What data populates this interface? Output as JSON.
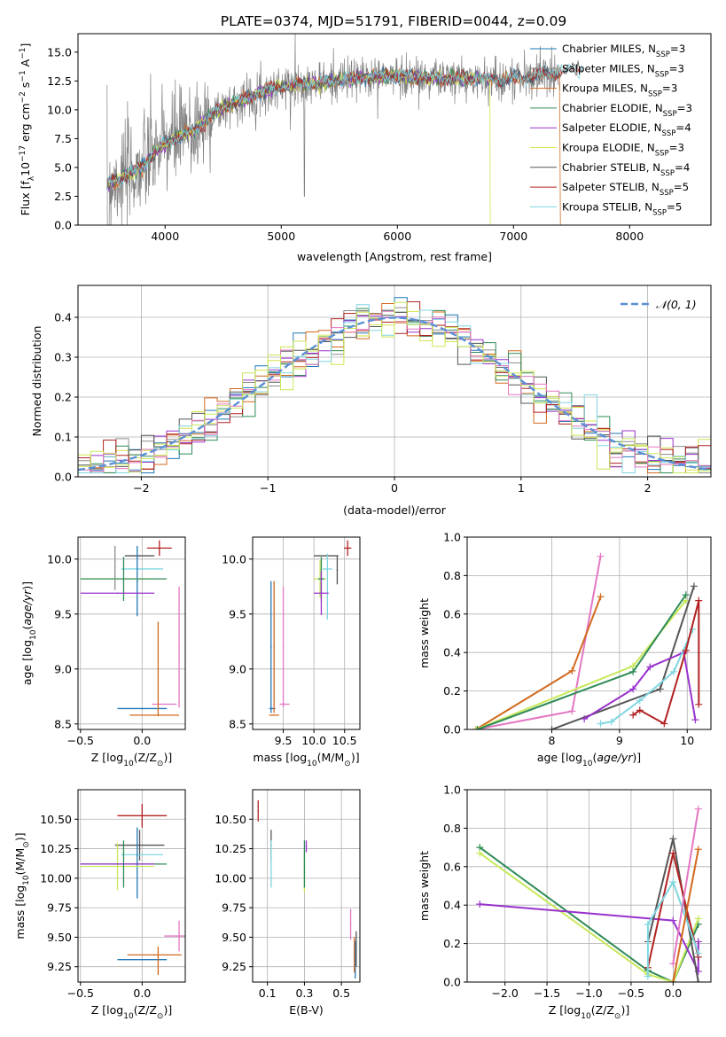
{
  "figure": {
    "title": "PLATE=0374, MJD=51791, FIBERID=0044, z=0.09"
  },
  "models": [
    {
      "name": "Chabrier MILES",
      "n": "3",
      "color": "#1f77b4"
    },
    {
      "name": "Salpeter MILES",
      "n": "3",
      "color": "#8c8c8c"
    },
    {
      "name": "Kroupa MILES",
      "n": "3",
      "color": "#d2691e"
    },
    {
      "name": "Chabrier ELODIE",
      "n": "3",
      "color": "#2e8b57"
    },
    {
      "name": "Salpeter ELODIE",
      "n": "4",
      "color": "#9932cc"
    },
    {
      "name": "Kroupa ELODIE",
      "n": "3",
      "color": "#d4e24a"
    },
    {
      "name": "Chabrier STELIB",
      "n": "4",
      "color": "#555555"
    },
    {
      "name": "Salpeter STELIB",
      "n": "5",
      "color": "#b22222"
    },
    {
      "name": "Kroupa STELIB",
      "n": "5",
      "color": "#7fd6e0"
    }
  ],
  "extra_colors": {
    "pink": "#e377c2",
    "orange": "#e07b2a",
    "lime": "#c8e85a"
  },
  "chart_data": [
    {
      "id": "spectrum",
      "type": "line",
      "title": "PLATE=0374, MJD=51791, FIBERID=0044, z=0.09",
      "xlabel": "wavelength [Angstrom, rest frame]",
      "ylabel_parts": [
        "Flux [f",
        "λ",
        "10",
        "−17",
        " erg cm",
        "−2",
        " s",
        "−1",
        " A",
        "−1",
        "]"
      ],
      "xlim": [
        3250,
        8700
      ],
      "ylim": [
        0,
        16.6
      ],
      "xticks": [
        4000,
        5000,
        6000,
        7000,
        8000
      ],
      "xtick_labels": [
        "4000",
        "5000",
        "6000",
        "7000",
        "8000"
      ],
      "yticks": [
        0,
        2.5,
        5,
        7.5,
        10,
        12.5,
        15
      ],
      "ytick_labels": [
        "0.0",
        "2.5",
        "5.0",
        "7.5",
        "10.0",
        "12.5",
        "15.0"
      ],
      "grid": false,
      "legend_position": "right",
      "legend_suffix": "N",
      "legend_sub": "SSP",
      "continuum": [
        [
          3500,
          3.6
        ],
        [
          3650,
          4.2
        ],
        [
          3800,
          5.0
        ],
        [
          3950,
          6.7
        ],
        [
          4100,
          7.6
        ],
        [
          4250,
          8.2
        ],
        [
          4400,
          9.6
        ],
        [
          4550,
          10.4
        ],
        [
          4700,
          11.0
        ],
        [
          4850,
          11.6
        ],
        [
          5000,
          12.0
        ],
        [
          5150,
          12.2
        ],
        [
          5300,
          12.3
        ],
        [
          5500,
          12.6
        ],
        [
          5700,
          12.8
        ],
        [
          5900,
          12.9
        ],
        [
          6100,
          12.9
        ],
        [
          6300,
          12.8
        ],
        [
          6500,
          12.7
        ],
        [
          6700,
          12.7
        ],
        [
          6900,
          12.6
        ],
        [
          7100,
          12.8
        ],
        [
          7300,
          13.1
        ],
        [
          7450,
          13.4
        ],
        [
          7600,
          13.6
        ]
      ],
      "data_range": [
        3500,
        7400
      ],
      "model_range": [
        3500,
        7600
      ],
      "model_ranges": {
        "Chabrier MILES": [
          3500,
          7400
        ],
        "Salpeter MILES": [
          3500,
          7400
        ],
        "Kroupa MILES": [
          3500,
          7400
        ],
        "Chabrier ELODIE": [
          3500,
          6800
        ],
        "Salpeter ELODIE": [
          3500,
          6800
        ],
        "Kroupa ELODIE": [
          3500,
          6800
        ]
      }
    },
    {
      "id": "residuals",
      "type": "histogram",
      "xlabel": "(data-model)/error",
      "ylabel": "Normed distribution",
      "xlim": [
        -2.5,
        2.5
      ],
      "ylim": [
        0,
        0.48
      ],
      "xticks": [
        -2,
        -1,
        0,
        1,
        2
      ],
      "xtick_labels": [
        "−2",
        "−1",
        "0",
        "1",
        "2"
      ],
      "yticks": [
        0,
        0.1,
        0.2,
        0.3,
        0.4
      ],
      "ytick_labels": [
        "0.0",
        "0.1",
        "0.2",
        "0.3",
        "0.4"
      ],
      "grid": true,
      "legend": "𝒩(0, 1)",
      "legend_position": "top-right",
      "normal_color": "#5b8fd6",
      "bin_width": 0.1,
      "normal": {
        "mean": 0,
        "sigma": 1
      }
    },
    {
      "id": "age-vs-Z",
      "type": "scatter",
      "xlabel_parts": [
        "Z [log",
        "10",
        "(Z/Z",
        "⊙",
        ")]"
      ],
      "ylabel_parts": [
        "age  [log",
        "10",
        "(",
        "age/yr",
        ")]"
      ],
      "xlim": [
        -0.52,
        0.35
      ],
      "ylim": [
        8.45,
        10.2
      ],
      "xticks": [
        -0.5,
        0.0
      ],
      "xtick_labels": [
        "−0.5",
        "0.0"
      ],
      "yticks": [
        8.5,
        9.0,
        9.5,
        10.0
      ],
      "ytick_labels": [
        "8.5",
        "9.0",
        "9.5",
        "10.0"
      ],
      "grid": true,
      "points": [
        {
          "color": "#1f77b4",
          "x": 0.0,
          "y": 8.64,
          "xerr": 0.2,
          "yerr": 0
        },
        {
          "color": "#d2691e",
          "x": 0.1,
          "y": 8.58,
          "xerr": 0.2,
          "yerr": 0
        },
        {
          "color": "#e377c2",
          "x": 0.18,
          "y": 8.68,
          "xerr": 0.1,
          "yerr": 0
        },
        {
          "color": "#e377c2",
          "x": 0.3,
          "y": 9.2,
          "xerr": 0,
          "yerr": 0.55
        },
        {
          "color": "#d2691e",
          "x": 0.13,
          "y": 9.0,
          "xerr": 0,
          "yerr": 0.43
        },
        {
          "color": "#b22222",
          "x": 0.14,
          "y": 10.1,
          "xerr": 0.1,
          "yerr": 0.07
        },
        {
          "color": "#555555",
          "x": -0.02,
          "y": 10.03,
          "xerr": 0.12,
          "yerr": 0
        },
        {
          "color": "#7fd6e0",
          "x": 0.0,
          "y": 9.91,
          "xerr": 0.17,
          "yerr": 0
        },
        {
          "color": "#1f77b4",
          "x": -0.04,
          "y": 9.8,
          "xerr": 0,
          "yerr": 0.32
        },
        {
          "color": "#c8e85a",
          "x": -0.2,
          "y": 9.82,
          "xerr": 0.3,
          "yerr": 0
        },
        {
          "color": "#2e8b57",
          "x": -0.15,
          "y": 9.82,
          "xerr": 0.35,
          "yerr": 0.2
        },
        {
          "color": "#9932cc",
          "x": -0.2,
          "y": 9.69,
          "xerr": 0.3,
          "yerr": 0
        },
        {
          "color": "#8c8c8c",
          "x": -0.22,
          "y": 9.92,
          "xerr": 0,
          "yerr": 0.2
        }
      ]
    },
    {
      "id": "age-vs-mass",
      "type": "scatter",
      "xlabel_parts": [
        "mass [log",
        "10",
        "(M/M",
        "⊙",
        ")]"
      ],
      "ylabel_parts": [],
      "xlim": [
        9.0,
        10.75
      ],
      "ylim": [
        8.45,
        10.2
      ],
      "xticks": [
        9.5,
        10.0,
        10.5
      ],
      "xtick_labels": [
        "9.5",
        "10.0",
        "10.5"
      ],
      "yticks": [
        8.5,
        9.0,
        9.5,
        10.0
      ],
      "ytick_labels": [
        "8.5",
        "9.0",
        "9.5",
        "10.0"
      ],
      "grid": true,
      "points": [
        {
          "color": "#1f77b4",
          "x": 9.32,
          "y": 8.64,
          "xerr": 0.05,
          "yerr": 0
        },
        {
          "color": "#d2691e",
          "x": 9.35,
          "y": 8.58,
          "xerr": 0.08,
          "yerr": 0
        },
        {
          "color": "#e377c2",
          "x": 9.52,
          "y": 8.68,
          "xerr": 0.08,
          "yerr": 0
        },
        {
          "color": "#e377c2",
          "x": 9.5,
          "y": 9.2,
          "xerr": 0,
          "yerr": 0.55
        },
        {
          "color": "#1f77b4",
          "x": 9.3,
          "y": 9.2,
          "xerr": 0,
          "yerr": 0.6
        },
        {
          "color": "#d2691e",
          "x": 9.35,
          "y": 9.2,
          "xerr": 0,
          "yerr": 0.6
        },
        {
          "color": "#b22222",
          "x": 10.55,
          "y": 10.1,
          "xerr": 0.06,
          "yerr": 0.07
        },
        {
          "color": "#555555",
          "x": 10.2,
          "y": 10.03,
          "xerr": 0.2,
          "yerr": 0
        },
        {
          "color": "#555555",
          "x": 10.38,
          "y": 9.9,
          "xerr": 0,
          "yerr": 0.13
        },
        {
          "color": "#7fd6e0",
          "x": 10.22,
          "y": 9.91,
          "xerr": 0.08,
          "yerr": 0
        },
        {
          "color": "#7fd6e0",
          "x": 10.22,
          "y": 9.75,
          "xerr": 0,
          "yerr": 0.3
        },
        {
          "color": "#c8e85a",
          "x": 10.1,
          "y": 9.82,
          "xerr": 0.1,
          "yerr": 0.17
        },
        {
          "color": "#2e8b57",
          "x": 10.12,
          "y": 9.82,
          "xerr": 0.05,
          "yerr": 0.2
        },
        {
          "color": "#9932cc",
          "x": 10.12,
          "y": 9.69,
          "xerr": 0.12,
          "yerr": 0.2
        }
      ]
    },
    {
      "id": "weight-vs-age",
      "type": "line",
      "xlabel_parts": [
        "age  [log",
        "10",
        "(",
        "age/yr",
        ")]"
      ],
      "ylabel": "mass weight",
      "xlim": [
        6.75,
        10.35
      ],
      "ylim": [
        0,
        1.0
      ],
      "xticks": [
        8,
        9,
        10
      ],
      "xtick_labels": [
        "8",
        "9",
        "10"
      ],
      "yticks": [
        0,
        0.2,
        0.4,
        0.6,
        0.8,
        1.0
      ],
      "ytick_labels": [
        "0.0",
        "0.2",
        "0.4",
        "0.6",
        "0.8",
        "1.0"
      ],
      "grid": true,
      "series": [
        {
          "color": "#e377c2",
          "x": [
            6.88,
            8.3,
            8.72
          ],
          "y": [
            0.0,
            0.095,
            0.9
          ]
        },
        {
          "color": "#d2691e",
          "x": [
            6.88,
            8.3,
            8.72
          ],
          "y": [
            0.0,
            0.305,
            0.69
          ]
        },
        {
          "color": "#c8e85a",
          "x": [
            6.88,
            9.2,
            9.98
          ],
          "y": [
            0.0,
            0.33,
            0.67
          ]
        },
        {
          "color": "#2e8b57",
          "x": [
            6.9,
            9.2,
            9.98
          ],
          "y": [
            0.0,
            0.3,
            0.7
          ]
        },
        {
          "color": "#555555",
          "x": [
            8.0,
            9.6,
            10.1
          ],
          "y": [
            0.0,
            0.21,
            0.745
          ]
        },
        {
          "color": "#9932cc",
          "x": [
            8.48,
            9.2,
            9.45,
            9.95,
            10.12
          ],
          "y": [
            0.055,
            0.21,
            0.325,
            0.4,
            0.05
          ]
        },
        {
          "color": "#7fd6e0",
          "x": [
            8.72,
            8.88,
            9.3,
            9.8,
            10.08
          ],
          "y": [
            0.03,
            0.04,
            0.15,
            0.3,
            0.52
          ]
        },
        {
          "color": "#b22222",
          "x": [
            9.2,
            9.3,
            9.66,
            9.98,
            10.17,
            10.17
          ],
          "y": [
            0.075,
            0.1,
            0.03,
            0.41,
            0.67,
            0.13
          ]
        }
      ]
    },
    {
      "id": "mass-vs-Z",
      "type": "scatter",
      "xlabel_parts": [
        "Z [log",
        "10",
        "(Z/Z",
        "⊙",
        ")]"
      ],
      "ylabel_parts": [
        "mass [log",
        "10",
        "(M/M",
        "⊙",
        ")]"
      ],
      "xlim": [
        -0.52,
        0.35
      ],
      "ylim": [
        9.12,
        10.75
      ],
      "xticks": [
        -0.5,
        0.0
      ],
      "xtick_labels": [
        "−0.5",
        "0.0"
      ],
      "yticks": [
        9.25,
        9.5,
        9.75,
        10.0,
        10.25,
        10.5
      ],
      "ytick_labels": [
        "9.25",
        "9.50",
        "9.75",
        "10.00",
        "10.25",
        "10.50"
      ],
      "grid": true,
      "points": [
        {
          "color": "#b22222",
          "x": 0.0,
          "y": 10.53,
          "xerr": 0.2,
          "yerr": 0.1
        },
        {
          "color": "#555555",
          "x": -0.02,
          "y": 10.28,
          "xerr": 0.2,
          "yerr": 0.13
        },
        {
          "color": "#7fd6e0",
          "x": 0.0,
          "y": 10.2,
          "xerr": 0.17,
          "yerr": 0.0
        },
        {
          "color": "#1f77b4",
          "x": -0.04,
          "y": 10.13,
          "xerr": 0,
          "yerr": 0.3
        },
        {
          "color": "#c8e85a",
          "x": -0.2,
          "y": 10.1,
          "xerr": 0.3,
          "yerr": 0.2
        },
        {
          "color": "#2e8b57",
          "x": -0.15,
          "y": 10.12,
          "xerr": 0.35,
          "yerr": 0.2
        },
        {
          "color": "#9932cc",
          "x": -0.2,
          "y": 10.12,
          "xerr": 0.3,
          "yerr": 0
        },
        {
          "color": "#e377c2",
          "x": 0.3,
          "y": 9.51,
          "xerr": 0.12,
          "yerr": 0.13
        },
        {
          "color": "#d2691e",
          "x": 0.1,
          "y": 9.35,
          "xerr": 0.22,
          "yerr": 0.0
        },
        {
          "color": "#1f77b4",
          "x": 0.0,
          "y": 9.31,
          "xerr": 0.2,
          "yerr": 0.0
        },
        {
          "color": "#d2691e",
          "x": 0.13,
          "y": 9.3,
          "xerr": 0,
          "yerr": 0.12
        }
      ]
    },
    {
      "id": "mass-vs-ebv",
      "type": "scatter",
      "xlabel": "E(B-V)",
      "ylabel_parts": [],
      "xlim": [
        0.02,
        0.6
      ],
      "ylim": [
        9.12,
        10.75
      ],
      "xticks": [
        0.1,
        0.3,
        0.5
      ],
      "xtick_labels": [
        "0.1",
        "0.3",
        "0.5"
      ],
      "yticks": [
        9.25,
        9.5,
        9.75,
        10.0,
        10.25,
        10.5
      ],
      "ytick_labels": [
        "9.25",
        "9.50",
        "9.75",
        "10.00",
        "10.25",
        "10.50"
      ],
      "grid": true,
      "points": [
        {
          "color": "#b22222",
          "x": 0.05,
          "y": 10.57,
          "xerr": 0,
          "yerr": 0.09
        },
        {
          "color": "#555555",
          "x": 0.12,
          "y": 10.28,
          "xerr": 0,
          "yerr": 0.13
        },
        {
          "color": "#7fd6e0",
          "x": 0.12,
          "y": 10.12,
          "xerr": 0,
          "yerr": 0.2
        },
        {
          "color": "#9932cc",
          "x": 0.31,
          "y": 10.27,
          "xerr": 0,
          "yerr": 0.05
        },
        {
          "color": "#c8e85a",
          "x": 0.3,
          "y": 10.05,
          "xerr": 0,
          "yerr": 0.17
        },
        {
          "color": "#2e8b57",
          "x": 0.3,
          "y": 10.12,
          "xerr": 0,
          "yerr": 0.2
        },
        {
          "color": "#e377c2",
          "x": 0.55,
          "y": 9.61,
          "xerr": 0,
          "yerr": 0.13
        },
        {
          "color": "#555555",
          "x": 0.58,
          "y": 9.4,
          "xerr": 0,
          "yerr": 0.15
        },
        {
          "color": "#1f77b4",
          "x": 0.575,
          "y": 9.31,
          "xerr": 0,
          "yerr": 0.16
        },
        {
          "color": "#d2691e",
          "x": 0.57,
          "y": 9.35,
          "xerr": 0,
          "yerr": 0.15
        }
      ]
    },
    {
      "id": "weight-vs-Z",
      "type": "line",
      "xlabel_parts": [
        "Z [log",
        "10",
        "(Z/Z",
        "⊙",
        ")]"
      ],
      "ylabel": "mass weight",
      "xlim": [
        -2.45,
        0.45
      ],
      "ylim": [
        0,
        1.0
      ],
      "xticks": [
        -2.0,
        -1.5,
        -1.0,
        -0.5,
        0.0
      ],
      "xtick_labels": [
        "−2.0",
        "−1.5",
        "−1.0",
        "−0.5",
        "0.0"
      ],
      "yticks": [
        0,
        0.2,
        0.4,
        0.6,
        0.8,
        1.0
      ],
      "ytick_labels": [
        "0.0",
        "0.2",
        "0.4",
        "0.6",
        "0.8",
        "1.0"
      ],
      "grid": true,
      "series": [
        {
          "color": "#2e8b57",
          "x": [
            -2.3,
            -0.3,
            0.0,
            0.3
          ],
          "y": [
            0.7,
            0.06,
            0.0,
            0.3
          ]
        },
        {
          "color": "#c8e85a",
          "x": [
            -2.3,
            -0.3,
            0.0,
            0.3
          ],
          "y": [
            0.67,
            0.04,
            0.0,
            0.33
          ]
        },
        {
          "color": "#9932cc",
          "x": [
            -2.3,
            0.0,
            0.3,
            0.3
          ],
          "y": [
            0.405,
            0.32,
            0.055,
            0.21
          ]
        },
        {
          "color": "#555555",
          "x": [
            -0.3,
            0.0,
            0.3
          ],
          "y": [
            0.21,
            0.745,
            0.0
          ]
        },
        {
          "color": "#b22222",
          "x": [
            -0.3,
            0.0,
            0.3
          ],
          "y": [
            0.075,
            0.67,
            0.13
          ]
        },
        {
          "color": "#7fd6e0",
          "x": [
            -0.3,
            -0.3,
            0.0,
            0.3
          ],
          "y": [
            0.03,
            0.3,
            0.52,
            0.15
          ]
        },
        {
          "color": "#e377c2",
          "x": [
            0.0,
            0.3
          ],
          "y": [
            0.095,
            0.9
          ]
        },
        {
          "color": "#d2691e",
          "x": [
            0.0,
            0.3
          ],
          "y": [
            0.0,
            0.69
          ]
        }
      ]
    }
  ]
}
